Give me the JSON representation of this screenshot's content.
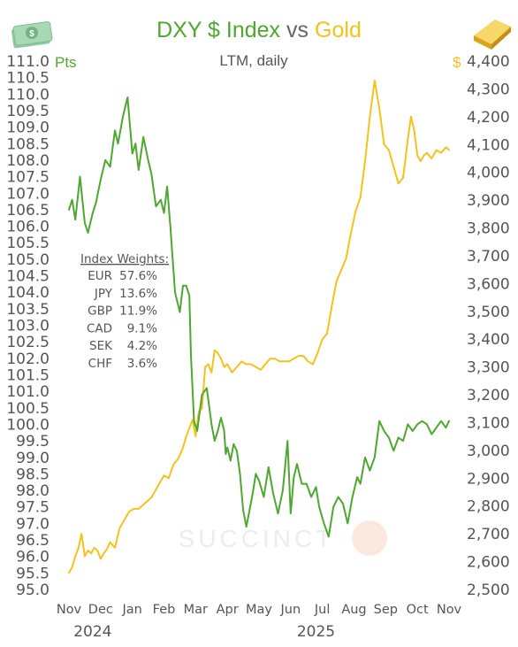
{
  "title": {
    "part1": "DXY $ Index",
    "part2": "vs",
    "part3": "Gold",
    "subtitle": "LTM, daily"
  },
  "colors": {
    "dxy": "#4ea72e",
    "gold": "#f5c21b",
    "text": "#555555"
  },
  "icons": {
    "left": "dollar-bills-icon",
    "right": "gold-bar-icon"
  },
  "watermark": "SUCCINCT",
  "weights_box": {
    "title": "Index Weights:",
    "rows": [
      {
        "label": "EUR",
        "value": "57.6%"
      },
      {
        "label": "JPY",
        "value": "13.6%"
      },
      {
        "label": "GBP",
        "value": "11.9%"
      },
      {
        "label": "CAD",
        "value": "9.1%"
      },
      {
        "label": "SEK",
        "value": "4.2%"
      },
      {
        "label": "CHF",
        "value": "3.6%"
      }
    ]
  },
  "chart_data": {
    "type": "line",
    "title": "DXY $ Index vs Gold",
    "subtitle": "LTM, daily",
    "left_axis": {
      "unit": "Pts",
      "min": 95.0,
      "max": 111.0,
      "ticks": [
        "95.0",
        "95.5",
        "96.0",
        "96.5",
        "97.0",
        "97.5",
        "98.0",
        "98.5",
        "99.0",
        "99.5",
        "100.0",
        "100.5",
        "101.0",
        "101.5",
        "102.0",
        "102.5",
        "103.0",
        "103.5",
        "104.0",
        "104.5",
        "105.0",
        "105.5",
        "106.0",
        "106.5",
        "107.0",
        "107.5",
        "108.0",
        "108.5",
        "109.0",
        "109.5",
        "110.0",
        "110.5",
        "111.0"
      ]
    },
    "right_axis": {
      "unit": "$",
      "min": 2500,
      "max": 4400,
      "ticks": [
        "2,500",
        "2,600",
        "2,700",
        "2,800",
        "2,900",
        "3,000",
        "3,100",
        "3,200",
        "3,300",
        "3,400",
        "3,500",
        "3,600",
        "3,700",
        "3,800",
        "3,900",
        "4,000",
        "4,100",
        "4,200",
        "4,300",
        "4,400"
      ]
    },
    "x_axis": {
      "months": [
        "Nov",
        "Dec",
        "Jan",
        "Feb",
        "Mar",
        "Apr",
        "May",
        "Jun",
        "Jul",
        "Aug",
        "Sep",
        "Oct",
        "Nov"
      ],
      "years": [
        {
          "label": "2024",
          "month_index": 0.75
        },
        {
          "label": "2025",
          "month_index": 7.8
        }
      ]
    },
    "series": [
      {
        "name": "DXY $ Index",
        "axis": "left",
        "x": [
          0,
          0.1,
          0.2,
          0.35,
          0.5,
          0.6,
          0.75,
          0.85,
          1.0,
          1.15,
          1.3,
          1.45,
          1.55,
          1.7,
          1.85,
          2.0,
          2.1,
          2.2,
          2.35,
          2.5,
          2.6,
          2.75,
          2.9,
          3.0,
          3.1,
          3.2,
          3.35,
          3.5,
          3.6,
          3.7,
          3.8,
          3.85,
          3.95,
          4.05,
          4.2,
          4.35,
          4.5,
          4.6,
          4.7,
          4.8,
          4.9,
          4.95,
          5.0,
          5.1,
          5.2,
          5.3,
          5.4,
          5.5,
          5.6,
          5.7,
          5.8,
          5.9,
          6.0,
          6.15,
          6.3,
          6.45,
          6.6,
          6.75,
          6.9,
          7.0,
          7.1,
          7.2,
          7.35,
          7.5,
          7.65,
          7.8,
          7.9,
          8.05,
          8.2,
          8.35,
          8.5,
          8.65,
          8.8,
          8.95,
          9.1,
          9.2,
          9.35,
          9.5,
          9.65,
          9.8,
          9.95,
          10.1,
          10.25,
          10.4,
          10.55,
          10.7,
          10.85,
          11.0,
          11.15,
          11.3,
          11.45,
          11.6,
          11.75,
          11.9,
          12.0
        ],
        "values": [
          106.5,
          106.8,
          106.2,
          107.5,
          106.1,
          105.8,
          106.4,
          106.7,
          107.4,
          108.0,
          107.8,
          108.9,
          108.5,
          109.3,
          109.9,
          108.2,
          108.5,
          107.7,
          108.7,
          108.0,
          107.6,
          106.6,
          106.8,
          106.4,
          107.2,
          106.0,
          104.0,
          103.4,
          104.2,
          104.2,
          103.9,
          102.1,
          100.1,
          99.8,
          100.9,
          101.1,
          100.0,
          99.5,
          99.8,
          100.2,
          99.8,
          99.1,
          99.3,
          98.9,
          99.4,
          99.2,
          98.5,
          97.4,
          96.9,
          97.4,
          97.9,
          98.5,
          98.3,
          97.8,
          98.7,
          97.9,
          97.3,
          98.0,
          99.5,
          97.3,
          98.4,
          98.8,
          98.2,
          98.2,
          97.8,
          98.1,
          97.5,
          97.0,
          96.6,
          97.5,
          97.8,
          97.6,
          97.0,
          97.8,
          98.4,
          98.2,
          99.0,
          98.6,
          99.0,
          100.1,
          99.8,
          99.6,
          99.2,
          99.6,
          99.5,
          100.0,
          99.8,
          100.0,
          100.1,
          100.0,
          99.7,
          99.9,
          100.1,
          99.9,
          100.1
        ],
        "color": "#4ea72e"
      },
      {
        "name": "Gold",
        "axis": "right",
        "x": [
          0,
          0.1,
          0.2,
          0.3,
          0.4,
          0.5,
          0.6,
          0.7,
          0.8,
          0.9,
          1.0,
          1.1,
          1.2,
          1.3,
          1.45,
          1.6,
          1.75,
          1.9,
          2.05,
          2.2,
          2.4,
          2.6,
          2.8,
          3.0,
          3.15,
          3.3,
          3.45,
          3.6,
          3.7,
          3.8,
          3.9,
          4.0,
          4.1,
          4.2,
          4.3,
          4.4,
          4.5,
          4.6,
          4.7,
          4.8,
          4.9,
          5.0,
          5.15,
          5.3,
          5.45,
          5.6,
          5.75,
          5.9,
          6.05,
          6.2,
          6.35,
          6.5,
          6.65,
          6.8,
          6.95,
          7.1,
          7.25,
          7.4,
          7.55,
          7.7,
          7.85,
          8.0,
          8.15,
          8.3,
          8.45,
          8.6,
          8.75,
          8.9,
          9.05,
          9.2,
          9.35,
          9.5,
          9.65,
          9.8,
          9.95,
          10.1,
          10.25,
          10.4,
          10.55,
          10.7,
          10.8,
          10.9,
          11.0,
          11.1,
          11.2,
          11.3,
          11.45,
          11.6,
          11.75,
          11.9,
          12.0
        ],
        "values": [
          2560,
          2580,
          2620,
          2650,
          2700,
          2620,
          2640,
          2630,
          2650,
          2640,
          2610,
          2630,
          2645,
          2670,
          2650,
          2720,
          2750,
          2780,
          2790,
          2790,
          2810,
          2830,
          2870,
          2910,
          2900,
          2950,
          2970,
          3010,
          3050,
          3080,
          3110,
          3050,
          3140,
          3150,
          3300,
          3310,
          3280,
          3360,
          3350,
          3330,
          3300,
          3310,
          3280,
          3300,
          3320,
          3310,
          3310,
          3300,
          3290,
          3310,
          3330,
          3330,
          3320,
          3320,
          3320,
          3330,
          3340,
          3340,
          3320,
          3310,
          3350,
          3400,
          3420,
          3520,
          3610,
          3650,
          3690,
          3780,
          3860,
          3910,
          4040,
          4200,
          4330,
          4230,
          4100,
          4080,
          4020,
          3960,
          3980,
          4120,
          4200,
          4150,
          4060,
          4040,
          4060,
          4070,
          4050,
          4080,
          4070,
          4090,
          4080
        ],
        "color": "#f5c21b"
      }
    ]
  }
}
